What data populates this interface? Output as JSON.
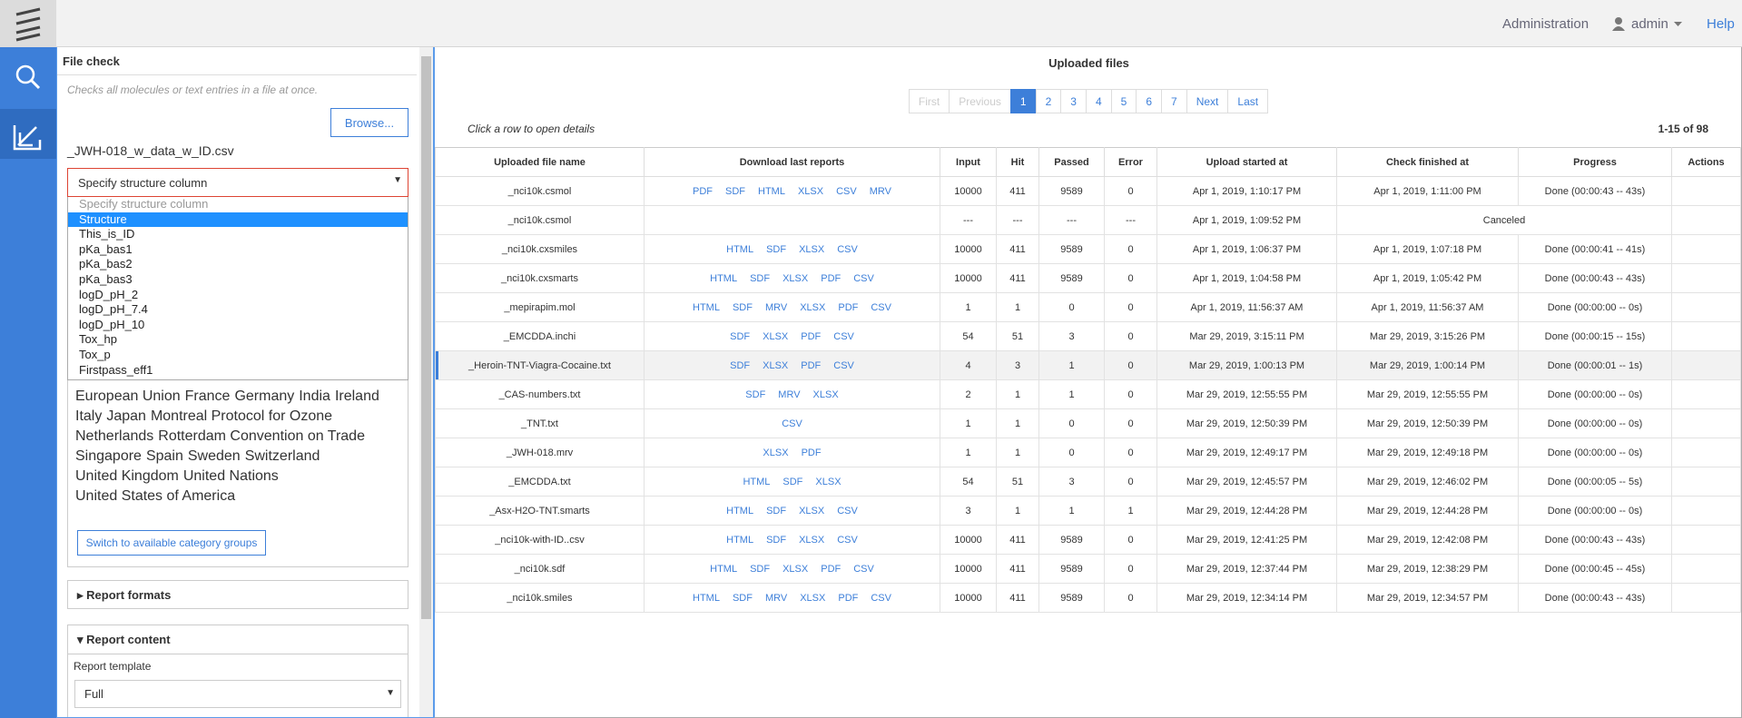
{
  "header": {
    "administration": "Administration",
    "user": "admin",
    "help": "Help"
  },
  "sidebar": {
    "title": "File check",
    "description": "Checks all molecules or text entries in a file at once.",
    "browse": "Browse...",
    "file_name": "_JWH-018_w_data_w_ID.csv",
    "structure_select": "Specify structure column",
    "options": [
      "Specify structure column",
      "Structure",
      "This_is_ID",
      "pKa_bas1",
      "pKa_bas2",
      "pKa_bas3",
      "logD_pH_2",
      "logD_pH_7.4",
      "logD_pH_10",
      "Tox_hp",
      "Tox_p",
      "Firstpass_eff1"
    ],
    "tags": [
      "European Union",
      "France",
      "Germany",
      "India",
      "Ireland",
      "Italy",
      "Japan",
      "Montreal Protocol for Ozone",
      "Netherlands",
      "Rotterdam Convention on Trade",
      "Singapore",
      "Spain",
      "Sweden",
      "Switzerland",
      "United Kingdom",
      "United Nations",
      "United States of America"
    ],
    "switch_button": "Switch to available category groups",
    "report_formats": "Report formats",
    "report_content": "Report content",
    "report_template_label": "Report template",
    "report_template": "Full"
  },
  "main": {
    "title": "Uploaded files",
    "pagination": [
      "First",
      "Previous",
      "1",
      "2",
      "3",
      "4",
      "5",
      "6",
      "7",
      "Next",
      "Last"
    ],
    "hint": "Click a row to open details",
    "count": "1-15 of 98",
    "columns": [
      "Uploaded file name",
      "Download last reports",
      "Input",
      "Hit",
      "Passed",
      "Error",
      "Upload started at",
      "Check finished at",
      "Progress",
      "Actions"
    ],
    "rows": [
      {
        "name": "_nci10k.csmol",
        "reports": [
          "PDF",
          "SDF",
          "HTML",
          "XLSX",
          "CSV",
          "MRV"
        ],
        "input": 10000,
        "hit": 411,
        "passed": 9589,
        "error": 0,
        "started": "Apr 1, 2019, 1:10:17 PM",
        "finished": "Apr 1, 2019, 1:11:00 PM",
        "progress": "Done (00:00:43 -- 43s)"
      },
      {
        "name": "_nci10k.csmol",
        "reports": [],
        "input": "---",
        "hit": "---",
        "passed": "---",
        "error": "---",
        "started": "Apr 1, 2019, 1:09:52 PM",
        "finished": "Canceled"
      },
      {
        "name": "_nci10k.cxsmiles",
        "reports": [
          "HTML",
          "SDF",
          "XLSX",
          "CSV"
        ],
        "input": 10000,
        "hit": 411,
        "passed": 9589,
        "error": 0,
        "started": "Apr 1, 2019, 1:06:37 PM",
        "finished": "Apr 1, 2019, 1:07:18 PM",
        "progress": "Done (00:00:41 -- 41s)"
      },
      {
        "name": "_nci10k.cxsmarts",
        "reports": [
          "HTML",
          "SDF",
          "XLSX",
          "PDF",
          "CSV"
        ],
        "input": 10000,
        "hit": 411,
        "passed": 9589,
        "error": 0,
        "started": "Apr 1, 2019, 1:04:58 PM",
        "finished": "Apr 1, 2019, 1:05:42 PM",
        "progress": "Done (00:00:43 -- 43s)"
      },
      {
        "name": "_mepirapim.mol",
        "reports": [
          "HTML",
          "SDF",
          "MRV",
          "XLSX",
          "PDF",
          "CSV"
        ],
        "input": 1,
        "hit": 1,
        "passed": 0,
        "error": 0,
        "started": "Apr 1, 2019, 11:56:37 AM",
        "finished": "Apr 1, 2019, 11:56:37 AM",
        "progress": "Done (00:00:00 -- 0s)"
      },
      {
        "name": "_EMCDDA.inchi",
        "reports": [
          "SDF",
          "XLSX",
          "PDF",
          "CSV"
        ],
        "input": 54,
        "hit": 51,
        "passed": 3,
        "error": 0,
        "started": "Mar 29, 2019, 3:15:11 PM",
        "finished": "Mar 29, 2019, 3:15:26 PM",
        "progress": "Done (00:00:15 -- 15s)"
      },
      {
        "name": "_Heroin-TNT-Viagra-Cocaine.txt",
        "reports": [
          "SDF",
          "XLSX",
          "PDF",
          "CSV"
        ],
        "input": 4,
        "hit": 3,
        "passed": 1,
        "error": 0,
        "started": "Mar 29, 2019, 1:00:13 PM",
        "finished": "Mar 29, 2019, 1:00:14 PM",
        "progress": "Done (00:00:01 -- 1s)"
      },
      {
        "name": "_CAS-numbers.txt",
        "reports": [
          "SDF",
          "MRV",
          "XLSX"
        ],
        "input": 2,
        "hit": 1,
        "passed": 1,
        "error": 0,
        "started": "Mar 29, 2019, 12:55:55 PM",
        "finished": "Mar 29, 2019, 12:55:55 PM",
        "progress": "Done (00:00:00 -- 0s)"
      },
      {
        "name": "_TNT.txt",
        "reports": [
          "CSV"
        ],
        "input": 1,
        "hit": 1,
        "passed": 0,
        "error": 0,
        "started": "Mar 29, 2019, 12:50:39 PM",
        "finished": "Mar 29, 2019, 12:50:39 PM",
        "progress": "Done (00:00:00 -- 0s)"
      },
      {
        "name": "_JWH-018.mrv",
        "reports": [
          "XLSX",
          "PDF"
        ],
        "input": 1,
        "hit": 1,
        "passed": 0,
        "error": 0,
        "started": "Mar 29, 2019, 12:49:17 PM",
        "finished": "Mar 29, 2019, 12:49:18 PM",
        "progress": "Done (00:00:00 -- 0s)"
      },
      {
        "name": "_EMCDDA.txt",
        "reports": [
          "HTML",
          "SDF",
          "XLSX"
        ],
        "input": 54,
        "hit": 51,
        "passed": 3,
        "error": 0,
        "started": "Mar 29, 2019, 12:45:57 PM",
        "finished": "Mar 29, 2019, 12:46:02 PM",
        "progress": "Done (00:00:05 -- 5s)"
      },
      {
        "name": "_Asx-H2O-TNT.smarts",
        "reports": [
          "HTML",
          "SDF",
          "XLSX",
          "CSV"
        ],
        "input": 3,
        "hit": 1,
        "passed": 1,
        "error": 1,
        "started": "Mar 29, 2019, 12:44:28 PM",
        "finished": "Mar 29, 2019, 12:44:28 PM",
        "progress": "Done (00:00:00 -- 0s)"
      },
      {
        "name": "_nci10k-with-ID..csv",
        "reports": [
          "HTML",
          "SDF",
          "XLSX",
          "CSV"
        ],
        "input": 10000,
        "hit": 411,
        "passed": 9589,
        "error": 0,
        "started": "Mar 29, 2019, 12:41:25 PM",
        "finished": "Mar 29, 2019, 12:42:08 PM",
        "progress": "Done (00:00:43 -- 43s)"
      },
      {
        "name": "_nci10k.sdf",
        "reports": [
          "HTML",
          "SDF",
          "XLSX",
          "PDF",
          "CSV"
        ],
        "input": 10000,
        "hit": 411,
        "passed": 9589,
        "error": 0,
        "started": "Mar 29, 2019, 12:37:44 PM",
        "finished": "Mar 29, 2019, 12:38:29 PM",
        "progress": "Done (00:00:45 -- 45s)"
      },
      {
        "name": "_nci10k.smiles",
        "reports": [
          "HTML",
          "SDF",
          "MRV",
          "XLSX",
          "PDF",
          "CSV"
        ],
        "input": 10000,
        "hit": 411,
        "passed": 9589,
        "error": 0,
        "started": "Mar 29, 2019, 12:34:14 PM",
        "finished": "Mar 29, 2019, 12:34:57 PM",
        "progress": "Done (00:00:43 -- 43s)"
      }
    ]
  }
}
